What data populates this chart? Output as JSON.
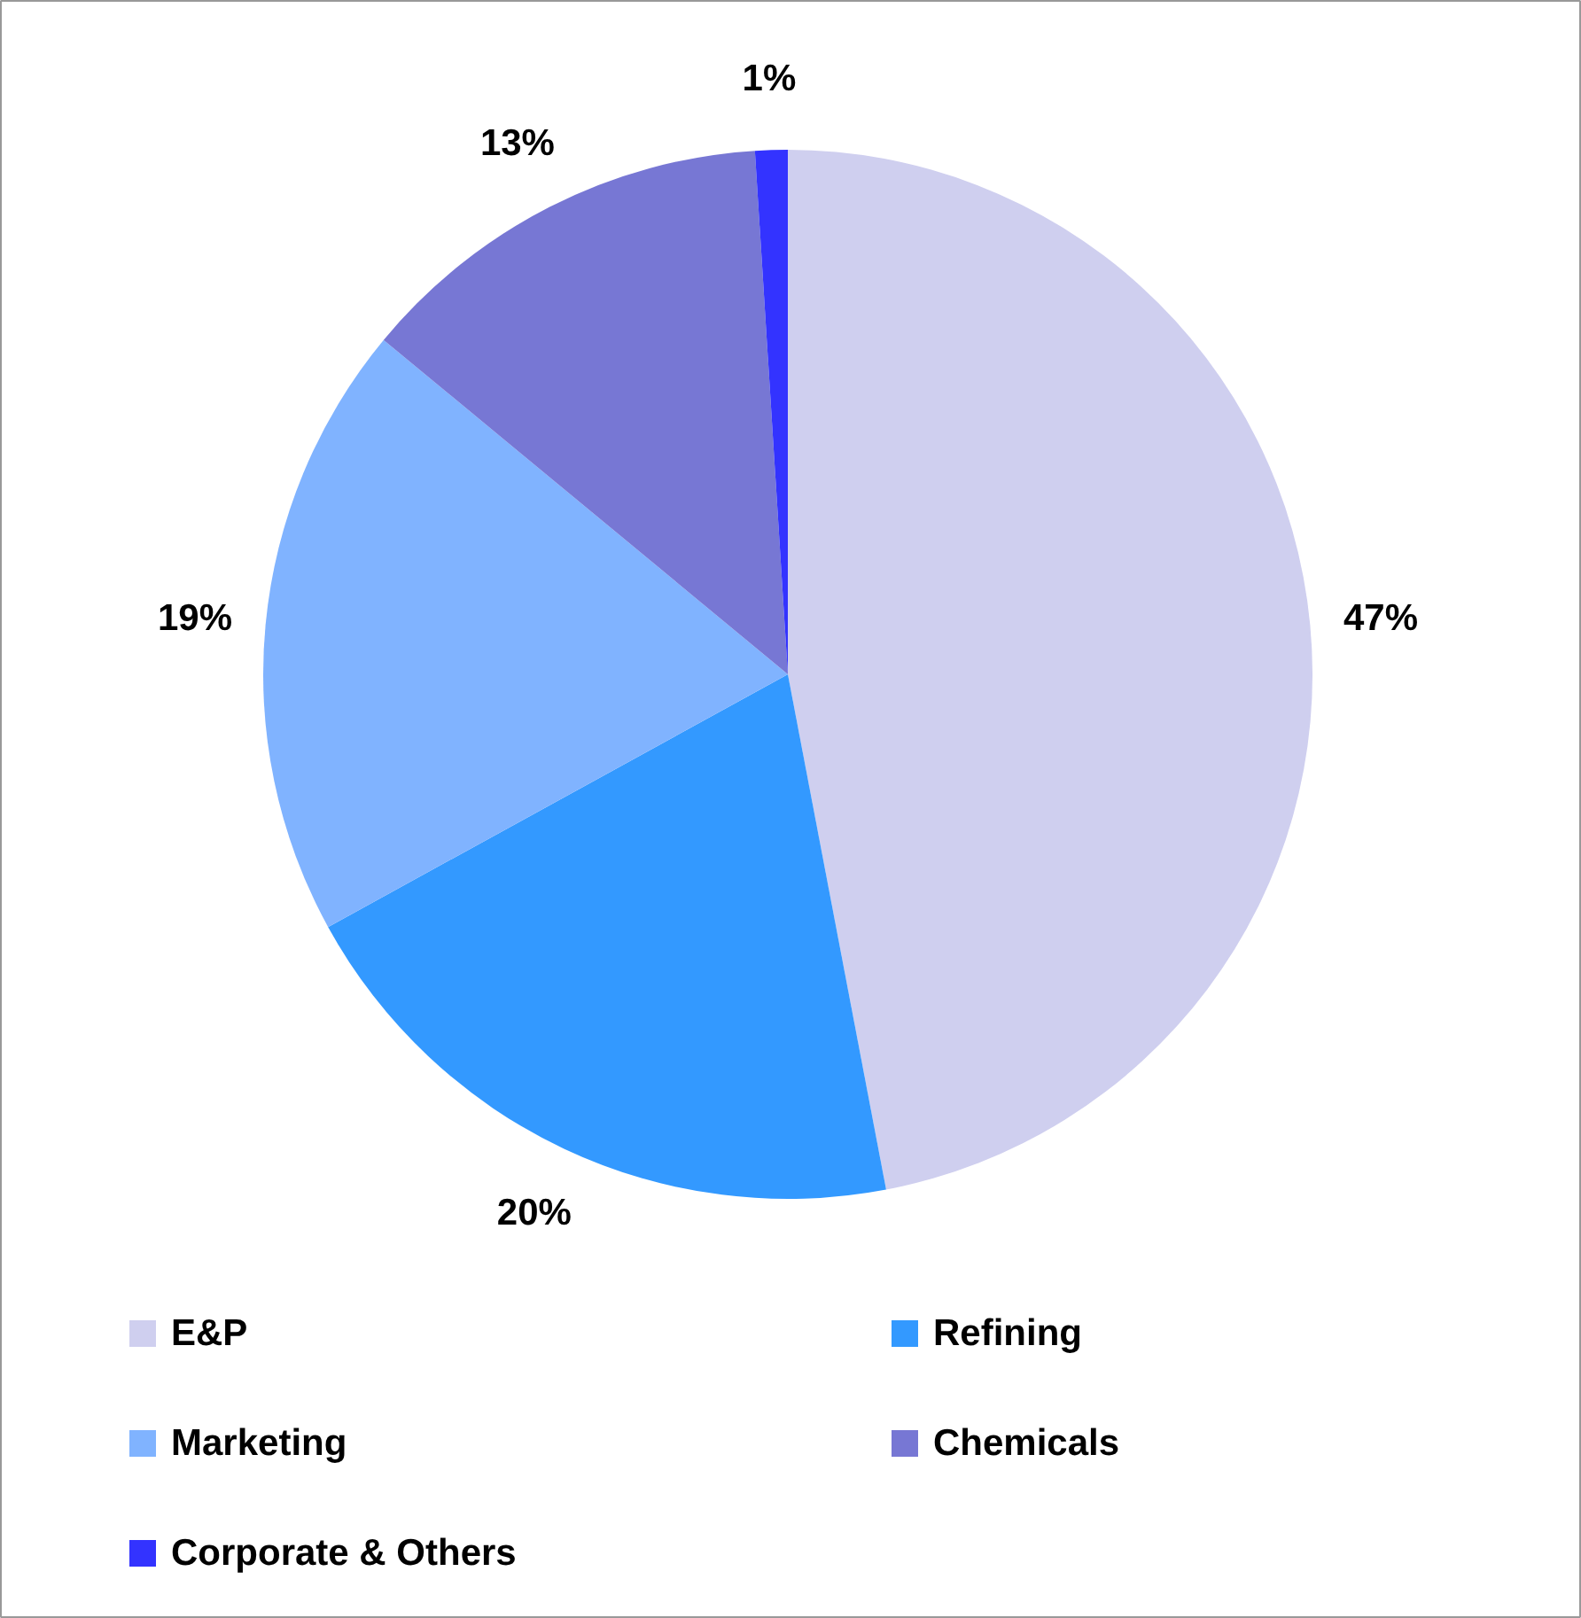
{
  "chart_data": {
    "type": "pie",
    "categories": [
      "E&P",
      "Refining",
      "Marketing",
      "Chemicals",
      "Corporate & Others"
    ],
    "values": [
      47,
      20,
      19,
      13,
      1
    ],
    "colors": [
      "#cfcfef",
      "#3399ff",
      "#80b3ff",
      "#7777d4",
      "#3333ff"
    ],
    "value_labels": [
      "47%",
      "20%",
      "19%",
      "13%",
      "1%"
    ],
    "legend": "bottom"
  }
}
